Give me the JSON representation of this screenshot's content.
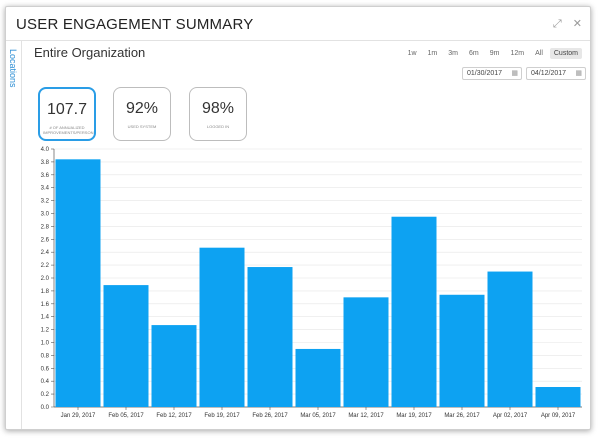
{
  "window": {
    "title": "USER ENGAGEMENT SUMMARY",
    "expand_icon": "expand-icon",
    "close_icon": "close-icon",
    "expand_glyph": "⤢",
    "close_glyph": "✕"
  },
  "sidebar": {
    "tab_label": "Locations"
  },
  "header": {
    "org_title": "Entire Organization",
    "ranges": [
      "1w",
      "1m",
      "3m",
      "6m",
      "9m",
      "12m",
      "All",
      "Custom"
    ],
    "active_range": "Custom",
    "start_date": "01/30/2017",
    "end_date": "04/12/2017",
    "calendar_glyph": "▦"
  },
  "kpis": [
    {
      "value": "107.7",
      "label": "# of Annualized Improvements/Person",
      "active": true
    },
    {
      "value": "92%",
      "label": "Used System",
      "active": false
    },
    {
      "value": "98%",
      "label": "Logged In",
      "active": false
    }
  ],
  "colors": {
    "bar": "#0da2f2",
    "accent": "#2a9de6"
  },
  "chart_data": {
    "type": "bar",
    "categories": [
      "Jan 29, 2017",
      "Feb 05, 2017",
      "Feb 12, 2017",
      "Feb 19, 2017",
      "Feb 26, 2017",
      "Mar 05, 2017",
      "Mar 12, 2017",
      "Mar 19, 2017",
      "Mar 26, 2017",
      "Apr 02, 2017",
      "Apr 09, 2017"
    ],
    "values": [
      3.84,
      1.89,
      1.27,
      2.47,
      2.17,
      0.9,
      1.7,
      2.95,
      1.74,
      2.1,
      0.31
    ],
    "ylim": [
      0,
      4.0
    ],
    "yticks": [
      "0.0",
      "0.2",
      "0.4",
      "0.6",
      "0.8",
      "1.0",
      "1.2",
      "1.4",
      "1.6",
      "1.8",
      "2.0",
      "2.2",
      "2.4",
      "2.6",
      "2.8",
      "3.0",
      "3.2",
      "3.4",
      "3.6",
      "3.8",
      "4.0"
    ],
    "grid": true
  }
}
